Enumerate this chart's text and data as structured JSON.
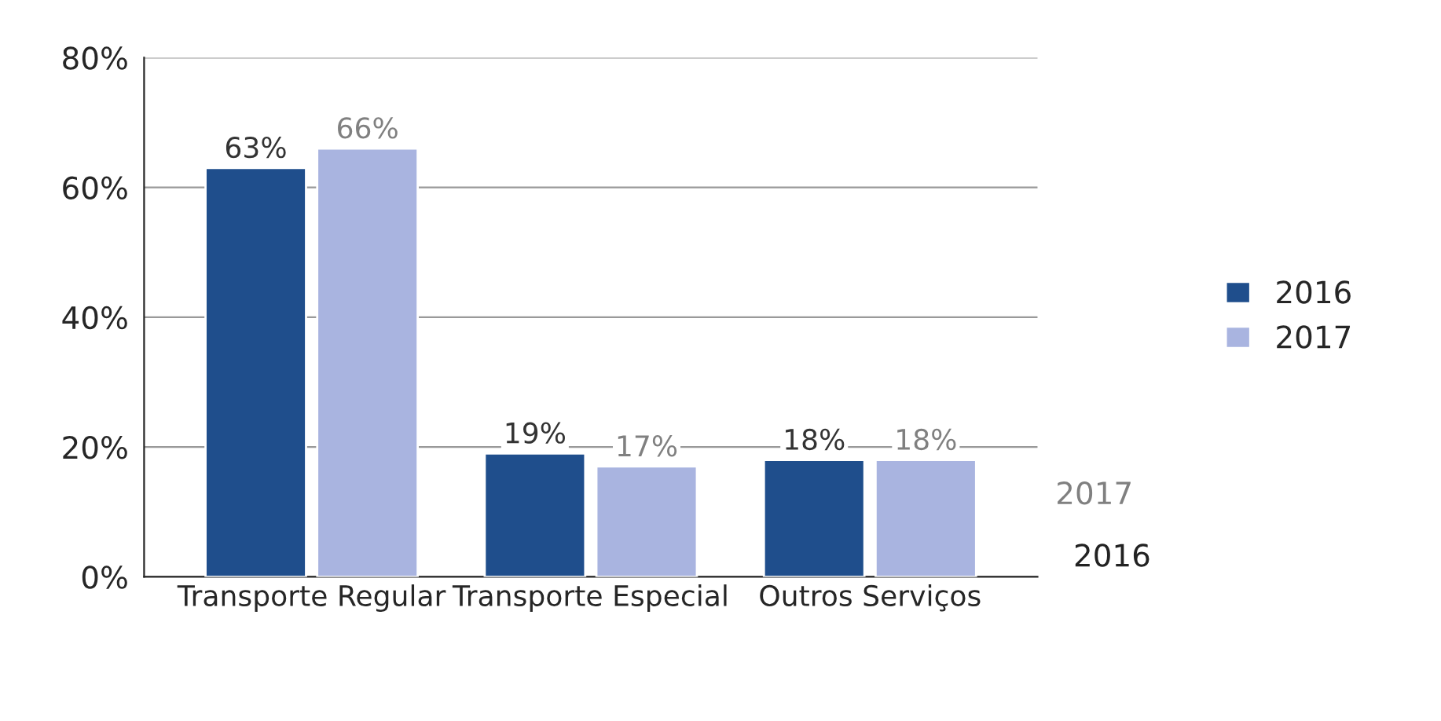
{
  "chart_data": {
    "type": "bar",
    "categories": [
      "Transporte Regular",
      "Transporte Especial",
      "Outros Serviços"
    ],
    "series": [
      {
        "name": "2016",
        "color": "#1f4e8c",
        "values": [
          63,
          19,
          18
        ],
        "value_labels": [
          "63%",
          "19%",
          "18%"
        ]
      },
      {
        "name": "2017",
        "color": "#a9b4e0",
        "values": [
          66,
          17,
          18
        ],
        "value_labels": [
          "66%",
          "17%",
          "18%"
        ]
      }
    ],
    "ylim": [
      0,
      80
    ],
    "yticks": [
      {
        "value": 0,
        "label": "0%"
      },
      {
        "value": 20,
        "label": "20%"
      },
      {
        "value": 40,
        "label": "40%"
      },
      {
        "value": 60,
        "label": "60%"
      },
      {
        "value": 80,
        "label": "80%"
      }
    ],
    "grid": "y",
    "legend": "right",
    "annotations": [
      "2017",
      "2016"
    ]
  }
}
